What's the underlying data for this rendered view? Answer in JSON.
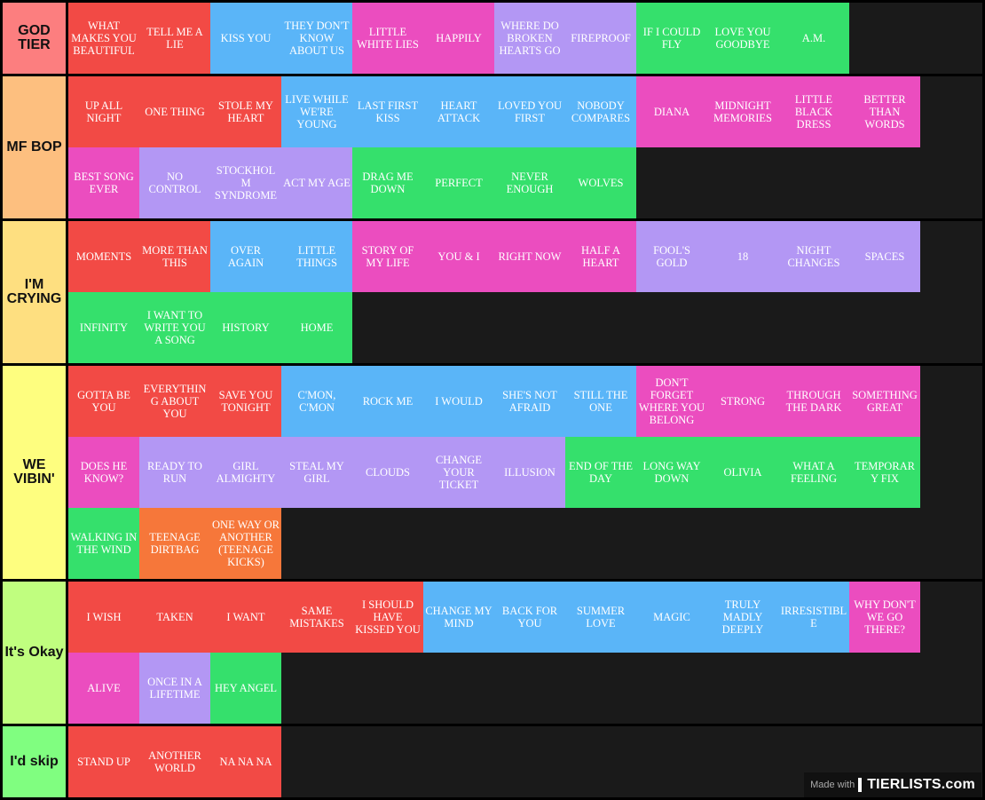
{
  "colors": {
    "red": "#f24a45",
    "blue": "#5ab5f8",
    "pink": "#eb4dbf",
    "purple": "#b397f4",
    "green": "#35e06c",
    "orange": "#f6773a"
  },
  "tiers": [
    {
      "label": "GOD TIER",
      "color": "#fc7e7f",
      "items": [
        {
          "text": "WHAT MAKES YOU BEAUTIFUL",
          "c": "red"
        },
        {
          "text": "TELL ME A LIE",
          "c": "red"
        },
        {
          "text": "KISS YOU",
          "c": "blue"
        },
        {
          "text": "THEY DON'T KNOW ABOUT US",
          "c": "blue"
        },
        {
          "text": "LITTLE WHITE LIES",
          "c": "pink"
        },
        {
          "text": "HAPPILY",
          "c": "pink"
        },
        {
          "text": "WHERE DO BROKEN HEARTS GO",
          "c": "purple"
        },
        {
          "text": "FIREPROOF",
          "c": "purple"
        },
        {
          "text": "IF I COULD FLY",
          "c": "green"
        },
        {
          "text": "LOVE YOU GOODBYE",
          "c": "green"
        },
        {
          "text": "A.M.",
          "c": "green"
        }
      ]
    },
    {
      "label": "MF BOP",
      "color": "#fdbf7f",
      "items": [
        {
          "text": "UP ALL NIGHT",
          "c": "red"
        },
        {
          "text": "ONE THING",
          "c": "red"
        },
        {
          "text": "STOLE MY HEART",
          "c": "red"
        },
        {
          "text": "LIVE WHILE WE'RE YOUNG",
          "c": "blue"
        },
        {
          "text": "LAST FIRST KISS",
          "c": "blue"
        },
        {
          "text": "HEART ATTACK",
          "c": "blue"
        },
        {
          "text": "LOVED YOU FIRST",
          "c": "blue"
        },
        {
          "text": "NOBODY COMPARES",
          "c": "blue"
        },
        {
          "text": "DIANA",
          "c": "pink"
        },
        {
          "text": "MIDNIGHT MEMORIES",
          "c": "pink"
        },
        {
          "text": "LITTLE BLACK DRESS",
          "c": "pink"
        },
        {
          "text": "BETTER THAN WORDS",
          "c": "pink"
        },
        {
          "text": "BEST SONG EVER",
          "c": "pink"
        },
        {
          "text": "NO CONTROL",
          "c": "purple"
        },
        {
          "text": "STOCKHOLM SYNDROME",
          "c": "purple"
        },
        {
          "text": "ACT MY AGE",
          "c": "purple"
        },
        {
          "text": "DRAG ME DOWN",
          "c": "green"
        },
        {
          "text": "PERFECT",
          "c": "green"
        },
        {
          "text": "NEVER ENOUGH",
          "c": "green"
        },
        {
          "text": "WOLVES",
          "c": "green"
        }
      ]
    },
    {
      "label": "I'M CRYING",
      "color": "#fedf80",
      "items": [
        {
          "text": "MOMENTS",
          "c": "red"
        },
        {
          "text": "MORE THAN THIS",
          "c": "red"
        },
        {
          "text": "OVER AGAIN",
          "c": "blue"
        },
        {
          "text": "LITTLE THINGS",
          "c": "blue"
        },
        {
          "text": "STORY OF MY LIFE",
          "c": "pink"
        },
        {
          "text": "YOU & I",
          "c": "pink"
        },
        {
          "text": "RIGHT NOW",
          "c": "pink"
        },
        {
          "text": "HALF A HEART",
          "c": "pink"
        },
        {
          "text": "FOOL'S GOLD",
          "c": "purple"
        },
        {
          "text": "18",
          "c": "purple"
        },
        {
          "text": "NIGHT CHANGES",
          "c": "purple"
        },
        {
          "text": "SPACES",
          "c": "purple"
        },
        {
          "text": "INFINITY",
          "c": "green"
        },
        {
          "text": "I WANT TO WRITE YOU A SONG",
          "c": "green"
        },
        {
          "text": "HISTORY",
          "c": "green"
        },
        {
          "text": "HOME",
          "c": "green"
        }
      ]
    },
    {
      "label": "WE VIBIN'",
      "color": "#fefe7f",
      "items": [
        {
          "text": "GOTTA BE YOU",
          "c": "red"
        },
        {
          "text": "EVERYTHING ABOUT YOU",
          "c": "red"
        },
        {
          "text": "SAVE YOU TONIGHT",
          "c": "red"
        },
        {
          "text": "C'MON, C'MON",
          "c": "blue"
        },
        {
          "text": "ROCK ME",
          "c": "blue"
        },
        {
          "text": "I WOULD",
          "c": "blue"
        },
        {
          "text": "SHE'S NOT AFRAID",
          "c": "blue"
        },
        {
          "text": "STILL THE ONE",
          "c": "blue"
        },
        {
          "text": "DON'T FORGET WHERE YOU BELONG",
          "c": "pink"
        },
        {
          "text": "STRONG",
          "c": "pink"
        },
        {
          "text": "THROUGH THE DARK",
          "c": "pink"
        },
        {
          "text": "SOMETHING GREAT",
          "c": "pink"
        },
        {
          "text": "DOES HE KNOW?",
          "c": "pink"
        },
        {
          "text": "READY TO RUN",
          "c": "purple"
        },
        {
          "text": "GIRL ALMIGHTY",
          "c": "purple"
        },
        {
          "text": "STEAL MY GIRL",
          "c": "purple"
        },
        {
          "text": "CLOUDS",
          "c": "purple"
        },
        {
          "text": "CHANGE YOUR TICKET",
          "c": "purple"
        },
        {
          "text": "ILLUSION",
          "c": "purple"
        },
        {
          "text": "END OF THE DAY",
          "c": "green"
        },
        {
          "text": "LONG WAY DOWN",
          "c": "green"
        },
        {
          "text": "OLIVIA",
          "c": "green"
        },
        {
          "text": "WHAT A FEELING",
          "c": "green"
        },
        {
          "text": "TEMPORARY FIX",
          "c": "green"
        },
        {
          "text": "WALKING IN THE WIND",
          "c": "green"
        },
        {
          "text": "TEENAGE DIRTBAG",
          "c": "orange"
        },
        {
          "text": "ONE WAY OR ANOTHER (TEENAGE KICKS)",
          "c": "orange"
        }
      ]
    },
    {
      "label": "It's Okay",
      "color": "#c0fe7f",
      "items": [
        {
          "text": "I WISH",
          "c": "red"
        },
        {
          "text": "TAKEN",
          "c": "red"
        },
        {
          "text": "I WANT",
          "c": "red"
        },
        {
          "text": "SAME MISTAKES",
          "c": "red"
        },
        {
          "text": "I SHOULD HAVE KISSED YOU",
          "c": "red"
        },
        {
          "text": "CHANGE MY MIND",
          "c": "blue"
        },
        {
          "text": "BACK FOR YOU",
          "c": "blue"
        },
        {
          "text": "SUMMER LOVE",
          "c": "blue"
        },
        {
          "text": "MAGIC",
          "c": "blue"
        },
        {
          "text": "TRULY MADLY DEEPLY",
          "c": "blue"
        },
        {
          "text": "IRRESISTIBLE",
          "c": "blue"
        },
        {
          "text": "WHY DON'T WE GO THERE?",
          "c": "pink"
        },
        {
          "text": "ALIVE",
          "c": "pink"
        },
        {
          "text": "ONCE IN A LIFETIME",
          "c": "purple"
        },
        {
          "text": "HEY ANGEL",
          "c": "green"
        }
      ]
    },
    {
      "label": "I'd skip",
      "color": "#80fe80",
      "items": [
        {
          "text": "STAND UP",
          "c": "red"
        },
        {
          "text": "ANOTHER WORLD",
          "c": "red"
        },
        {
          "text": "NA NA NA",
          "c": "red"
        }
      ]
    }
  ],
  "watermark": {
    "made_with": "Made with",
    "logo": "TIERLISTS.com"
  }
}
